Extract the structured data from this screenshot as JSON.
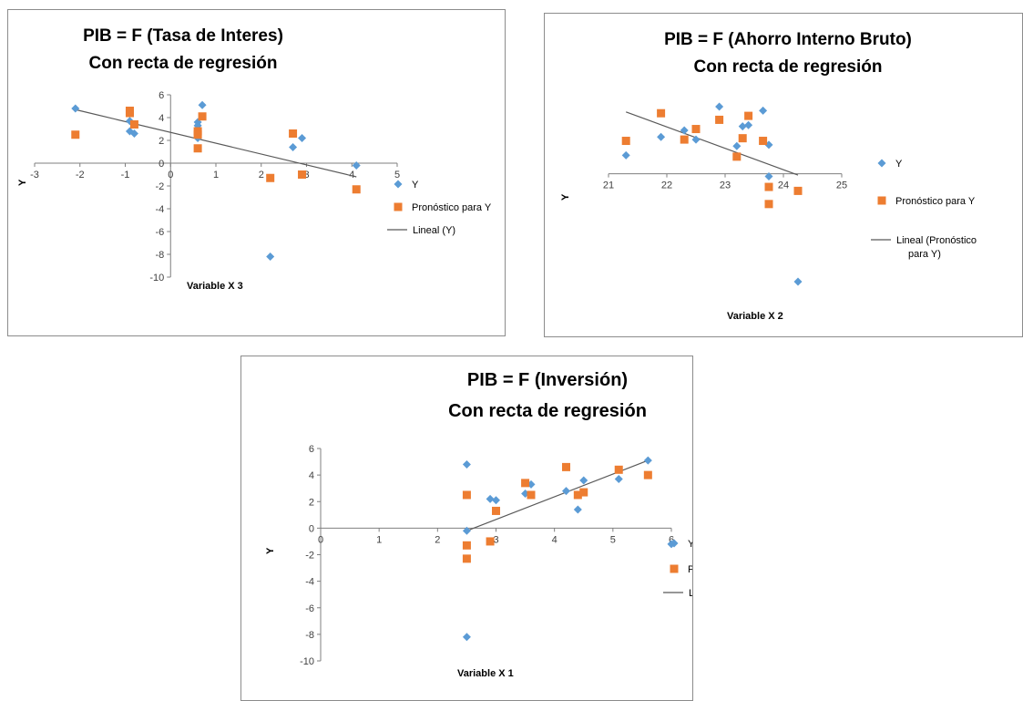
{
  "colors": {
    "series_y": "#5B9BD5",
    "series_pronostico": "#ED7D31",
    "trendline": "#595959",
    "axis": "#7f7f7f"
  },
  "chart_data": [
    {
      "type": "scatter",
      "title": [
        "PIB = F (Tasa de Interes)",
        "Con recta de regresión"
      ],
      "xlabel": "Variable X 3",
      "ylabel": "Y",
      "xlim": [
        -3,
        5
      ],
      "ylim": [
        -10,
        6
      ],
      "xticks": [
        "-3",
        "-2",
        "-1",
        "0",
        "1",
        "2",
        "3",
        "4",
        "5"
      ],
      "yticks": [
        "6",
        "4",
        "2",
        "0",
        "-2",
        "-4",
        "-6",
        "-8",
        "-10"
      ],
      "series": [
        {
          "name": "Y",
          "marker": "diamond",
          "color": "#5B9BD5",
          "x": [
            -2.1,
            -0.9,
            -0.9,
            -0.8,
            0.6,
            0.6,
            0.6,
            0.7,
            2.7,
            2.9,
            2.2,
            4.1
          ],
          "y": [
            4.8,
            3.7,
            2.8,
            2.6,
            3.6,
            3.3,
            2.2,
            5.1,
            1.4,
            2.2,
            -8.2,
            -0.2
          ]
        },
        {
          "name": "Pronóstico para Y",
          "marker": "square",
          "color": "#ED7D31",
          "x": [
            -2.1,
            -0.9,
            -0.9,
            -0.8,
            0.6,
            0.6,
            0.6,
            0.7,
            2.7,
            2.9,
            2.2,
            4.1
          ],
          "y": [
            2.5,
            4.6,
            4.4,
            3.4,
            2.8,
            2.5,
            1.3,
            4.1,
            2.6,
            -1.0,
            -1.3,
            -2.3
          ]
        }
      ],
      "trendline": {
        "name": "Lineal (Y)",
        "x": [
          -2.1,
          4.1
        ],
        "y": [
          4.7,
          -1.2
        ]
      },
      "legend": "right"
    },
    {
      "type": "scatter",
      "title": [
        "PIB = F (Ahorro Interno Bruto)",
        "Con recta de regresión"
      ],
      "xlabel": "Variable X 2",
      "ylabel": "Y",
      "xlim": [
        21,
        25
      ],
      "ylim": [
        -10,
        6
      ],
      "xticks": [
        "21",
        "22",
        "23",
        "24",
        "25"
      ],
      "yticks": [
        "6",
        "4",
        "2",
        "0",
        "-2",
        "-4",
        "-6",
        "-8",
        "-10"
      ],
      "series": [
        {
          "name": "Y",
          "marker": "diamond",
          "color": "#5B9BD5",
          "x": [
            21.3,
            21.9,
            22.3,
            22.5,
            22.9,
            23.2,
            23.3,
            23.4,
            23.65,
            23.75,
            23.75,
            24.25
          ],
          "y": [
            1.4,
            2.8,
            3.3,
            2.6,
            5.1,
            2.1,
            3.6,
            3.7,
            4.8,
            2.2,
            -0.2,
            -8.2
          ]
        },
        {
          "name": "Pronóstico para Y",
          "marker": "square",
          "color": "#ED7D31",
          "x": [
            21.3,
            21.9,
            22.3,
            22.5,
            22.9,
            23.2,
            23.3,
            23.4,
            23.65,
            23.75,
            23.75,
            24.25
          ],
          "y": [
            2.5,
            4.6,
            2.6,
            3.4,
            4.1,
            1.3,
            2.7,
            4.4,
            2.5,
            -1.0,
            -2.3,
            -1.3
          ]
        }
      ],
      "trendline": {
        "name": "Lineal (Pronóstico para Y)",
        "x": [
          21.3,
          24.25
        ],
        "y": [
          4.7,
          -0.1
        ]
      },
      "legend": "right"
    },
    {
      "type": "scatter",
      "title": [
        "PIB =  F (Inversión)",
        "Con recta de regresión"
      ],
      "xlabel": "Variable X 1",
      "ylabel": "Y",
      "xlim": [
        0,
        6
      ],
      "ylim": [
        -10,
        6
      ],
      "xticks": [
        "0",
        "1",
        "2",
        "3",
        "4",
        "5",
        "6"
      ],
      "yticks": [
        "6",
        "4",
        "2",
        "0",
        "-2",
        "-4",
        "-6",
        "-8",
        "-10"
      ],
      "series": [
        {
          "name": "Y",
          "marker": "diamond",
          "color": "#5B9BD5",
          "x": [
            2.5,
            2.5,
            2.5,
            2.9,
            3.0,
            3.5,
            3.6,
            4.2,
            4.4,
            4.5,
            5.1,
            5.6,
            6.0
          ],
          "y": [
            4.8,
            -0.2,
            -8.2,
            2.2,
            2.1,
            2.6,
            3.3,
            2.8,
            1.4,
            3.6,
            3.7,
            5.1,
            -1.2
          ]
        },
        {
          "name": "Pronóstico para Y",
          "marker": "square",
          "color": "#ED7D31",
          "x": [
            2.5,
            2.5,
            2.5,
            2.9,
            3.0,
            3.5,
            3.6,
            4.2,
            4.4,
            4.5,
            5.1,
            5.6
          ],
          "y": [
            2.5,
            -1.3,
            -2.3,
            -1.0,
            1.3,
            3.4,
            2.5,
            4.6,
            2.5,
            2.7,
            4.4,
            4.0
          ]
        }
      ],
      "trendline": {
        "name": "Lineal (Y)",
        "x": [
          2.5,
          5.6
        ],
        "y": [
          -0.2,
          5.1
        ]
      },
      "legend": "right"
    }
  ]
}
